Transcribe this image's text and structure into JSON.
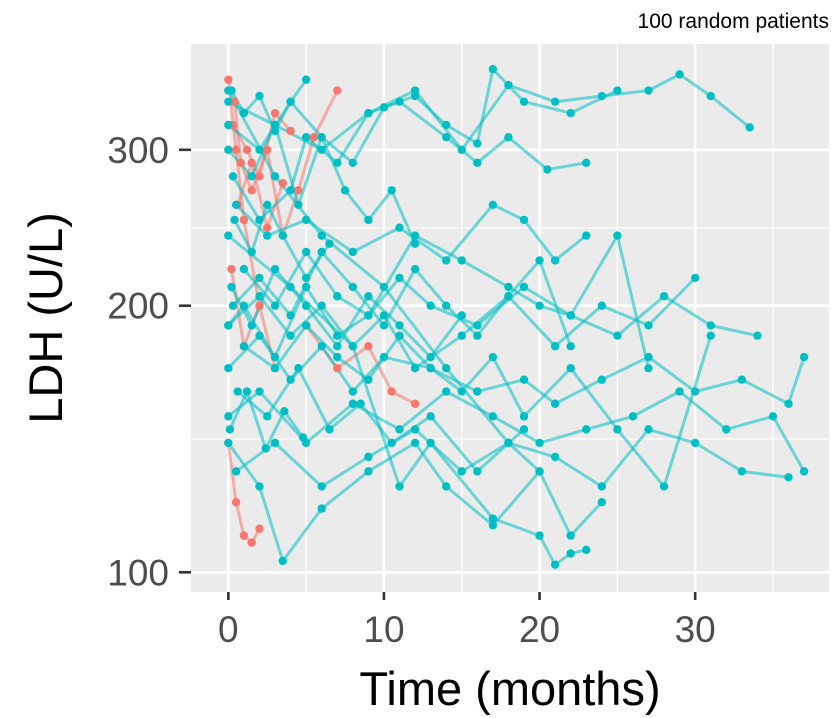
{
  "chart_data": {
    "type": "line",
    "title": "",
    "subtitle": "100 random patients",
    "xlabel": "Time (months)",
    "ylabel": "LDH (U/L)",
    "x_scale": "linear",
    "y_scale": "log",
    "xlim": [
      -2.4,
      38.6
    ],
    "ylim": [
      95,
      395
    ],
    "x_ticks": [
      0,
      10,
      20,
      30
    ],
    "x_tick_labels": [
      "0",
      "10",
      "20",
      "30"
    ],
    "y_ticks": [
      100,
      200,
      300
    ],
    "y_tick_labels": [
      "100",
      "200",
      "300"
    ],
    "grid": true,
    "legend": "none",
    "colors": {
      "group_a": "#F8766D",
      "group_b": "#00BFC4",
      "panel_background": "#EBEBEB",
      "grid": "#FFFFFF"
    },
    "series": [
      {
        "group": "b",
        "x": [
          0,
          3,
          6,
          9,
          12,
          15,
          18,
          21,
          24,
          27,
          29,
          31,
          33.5
        ],
        "y": [
          340,
          320,
          300,
          330,
          350,
          300,
          355,
          340,
          345,
          350,
          365,
          345,
          318
        ]
      },
      {
        "group": "b",
        "x": [
          0,
          2,
          4,
          6,
          8,
          10,
          12,
          14,
          16,
          17,
          19,
          22,
          25
        ],
        "y": [
          320,
          300,
          340,
          310,
          290,
          335,
          345,
          320,
          305,
          370,
          340,
          330,
          350
        ]
      },
      {
        "group": "b",
        "x": [
          0.3,
          2,
          4,
          5,
          7,
          9,
          11,
          14,
          16,
          18,
          20.5,
          23
        ],
        "y": [
          280,
          250,
          270,
          310,
          290,
          330,
          340,
          310,
          290,
          310,
          285,
          290
        ]
      },
      {
        "group": "b",
        "x": [
          0,
          1,
          3,
          5,
          7,
          9,
          11,
          13,
          16,
          19,
          22,
          25,
          28,
          31,
          34
        ],
        "y": [
          190,
          200,
          175,
          210,
          185,
          195,
          215,
          200,
          190,
          210,
          195,
          185,
          205,
          190,
          185
        ]
      },
      {
        "group": "b",
        "x": [
          0,
          2,
          5,
          8,
          11,
          14,
          17,
          20,
          23,
          26,
          29,
          32,
          35,
          37
        ],
        "y": [
          150,
          160,
          140,
          155,
          145,
          160,
          150,
          140,
          145,
          150,
          160,
          145,
          150,
          130
        ]
      },
      {
        "group": "b",
        "x": [
          0.5,
          3,
          6,
          9,
          12,
          15,
          18,
          21,
          24,
          27,
          30,
          33,
          36
        ],
        "y": [
          130,
          140,
          125,
          135,
          145,
          130,
          140,
          135,
          125,
          145,
          140,
          130,
          128
        ]
      },
      {
        "group": "b",
        "x": [
          0,
          4,
          8,
          11,
          13,
          17,
          20,
          21,
          22,
          23
        ],
        "y": [
          240,
          210,
          180,
          125,
          140,
          115,
          110,
          102,
          105,
          106
        ]
      },
      {
        "group": "b",
        "x": [
          1,
          3,
          5,
          7,
          9,
          12,
          15,
          18,
          20,
          22,
          25,
          27
        ],
        "y": [
          220,
          200,
          230,
          205,
          195,
          240,
          225,
          210,
          200,
          195,
          240,
          170
        ]
      },
      {
        "group": "b",
        "x": [
          0,
          2,
          4,
          6,
          8,
          10,
          13,
          16,
          19,
          21,
          24,
          27,
          30,
          33,
          36,
          37
        ],
        "y": [
          170,
          185,
          165,
          180,
          160,
          175,
          170,
          160,
          165,
          155,
          165,
          175,
          160,
          165,
          155,
          175
        ]
      },
      {
        "group": "b",
        "x": [
          0.5,
          2.5,
          5,
          8,
          11,
          14,
          17,
          19,
          21,
          23
        ],
        "y": [
          260,
          240,
          250,
          230,
          245,
          225,
          260,
          250,
          225,
          240
        ]
      },
      {
        "group": "b",
        "x": [
          0.2,
          1.5,
          3,
          5,
          7,
          9,
          11,
          13,
          15
        ],
        "y": [
          210,
          190,
          220,
          200,
          180,
          205,
          190,
          175,
          195
        ]
      },
      {
        "group": "b",
        "x": [
          0,
          2,
          3.5,
          6,
          9,
          12,
          14,
          17,
          20,
          22,
          24
        ],
        "y": [
          140,
          125,
          103,
          118,
          130,
          140,
          125,
          113,
          130,
          110,
          120
        ]
      },
      {
        "group": "b",
        "x": [
          1,
          3,
          5,
          7,
          9,
          11,
          13,
          15,
          17,
          19,
          22,
          25,
          28,
          31
        ],
        "y": [
          180,
          170,
          190,
          175,
          165,
          185,
          170,
          160,
          175,
          150,
          170,
          145,
          125,
          185
        ]
      },
      {
        "group": "b",
        "x": [
          0,
          1.5,
          3,
          4.5,
          6,
          7.5,
          9,
          10.5,
          12
        ],
        "y": [
          300,
          280,
          320,
          260,
          310,
          270,
          250,
          270,
          235
        ]
      },
      {
        "group": "b",
        "x": [
          0.3,
          2,
          4,
          6,
          8,
          10,
          12,
          14,
          16,
          18,
          20,
          22
        ],
        "y": [
          200,
          215,
          195,
          230,
          210,
          190,
          220,
          200,
          185,
          205,
          225,
          180
        ]
      },
      {
        "group": "b",
        "x": [
          0,
          3,
          6,
          10,
          14,
          18,
          20
        ],
        "y": [
          350,
          280,
          240,
          210,
          170,
          140,
          130
        ]
      },
      {
        "group": "b",
        "x": [
          0.6,
          2.5,
          4.5,
          6.5,
          8.5,
          10.5,
          13,
          16,
          19
        ],
        "y": [
          160,
          150,
          170,
          145,
          155,
          140,
          150,
          130,
          145
        ]
      },
      {
        "group": "b",
        "x": [
          0,
          2,
          4,
          6,
          8,
          10,
          12,
          15,
          18,
          21,
          24,
          27,
          30
        ],
        "y": [
          190,
          205,
          185,
          200,
          180,
          195,
          170,
          185,
          205,
          180,
          200,
          190,
          215
        ]
      },
      {
        "group": "b",
        "x": [
          0.2,
          1,
          2,
          3,
          4,
          5
        ],
        "y": [
          350,
          330,
          345,
          315,
          340,
          360
        ]
      },
      {
        "group": "b",
        "x": [
          0.4,
          1.5,
          2.5,
          3.5,
          5,
          6.5
        ],
        "y": [
          250,
          230,
          260,
          240,
          215,
          235
        ]
      },
      {
        "group": "b",
        "x": [
          0.1,
          1.2,
          2.4,
          3.6,
          4.8
        ],
        "y": [
          145,
          160,
          138,
          152,
          142
        ]
      },
      {
        "group": "a",
        "x": [
          0,
          0.5,
          1,
          2
        ],
        "y": [
          360,
          300,
          250,
          200
        ]
      },
      {
        "group": "a",
        "x": [
          0.2,
          1,
          2,
          3
        ],
        "y": [
          220,
          180,
          200,
          170
        ]
      },
      {
        "group": "a",
        "x": [
          0.4,
          0.8,
          1.5,
          2.5,
          3.5,
          4.5,
          5.5,
          7
        ],
        "y": [
          340,
          290,
          270,
          300,
          240,
          270,
          310,
          350
        ]
      },
      {
        "group": "a",
        "x": [
          0,
          0.5,
          1,
          1.5,
          2
        ],
        "y": [
          140,
          120,
          110,
          108,
          112
        ]
      },
      {
        "group": "a",
        "x": [
          5,
          7,
          9,
          10.5,
          12
        ],
        "y": [
          190,
          170,
          180,
          160,
          155
        ]
      },
      {
        "group": "a",
        "x": [
          0.6,
          1.5,
          2.5,
          3.5
        ],
        "y": [
          260,
          290,
          245,
          275
        ]
      },
      {
        "group": "a",
        "x": [
          0.3,
          1.2,
          2,
          3,
          4
        ],
        "y": [
          320,
          300,
          280,
          330,
          315
        ]
      }
    ]
  }
}
